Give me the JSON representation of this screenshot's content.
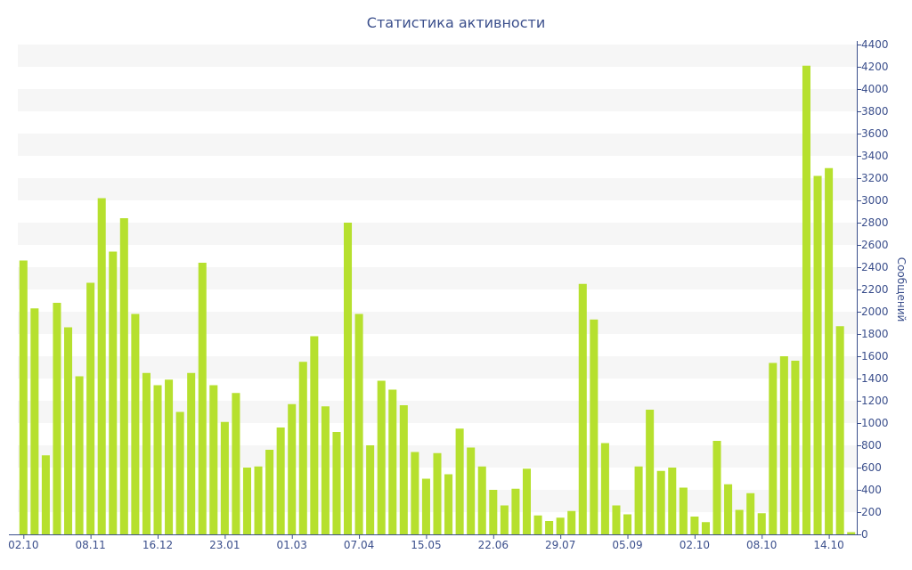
{
  "chart_data": {
    "type": "bar",
    "title": "Статистика активности",
    "xlabel": "",
    "ylabel": "Сообщений",
    "ylim": [
      0,
      4400
    ],
    "y_ticks": [
      0,
      200,
      400,
      600,
      800,
      1000,
      1200,
      1400,
      1600,
      1800,
      2000,
      2200,
      2400,
      2600,
      2800,
      3000,
      3200,
      3400,
      3600,
      3800,
      4000,
      4200,
      4400
    ],
    "grid": "alternating horizontal bands",
    "y_axis_position": "right",
    "x_tick_labels": [
      {
        "index": 0,
        "label": "02.10"
      },
      {
        "index": 6,
        "label": "08.11"
      },
      {
        "index": 12,
        "label": "16.12"
      },
      {
        "index": 18,
        "label": "23.01"
      },
      {
        "index": 24,
        "label": "01.03"
      },
      {
        "index": 30,
        "label": "07.04"
      },
      {
        "index": 36,
        "label": "15.05"
      },
      {
        "index": 42,
        "label": "22.06"
      },
      {
        "index": 48,
        "label": "29.07"
      },
      {
        "index": 54,
        "label": "05.09"
      },
      {
        "index": 60,
        "label": "02.10"
      },
      {
        "index": 66,
        "label": "08.10"
      },
      {
        "index": 72,
        "label": "14.10"
      }
    ],
    "values": [
      2460,
      2030,
      710,
      2080,
      1860,
      1420,
      2260,
      3020,
      2540,
      2840,
      1980,
      1450,
      1340,
      1390,
      1100,
      1450,
      2440,
      1340,
      1010,
      1270,
      600,
      610,
      760,
      960,
      1170,
      1550,
      1780,
      1150,
      920,
      2800,
      1980,
      800,
      1380,
      1300,
      1160,
      740,
      500,
      730,
      540,
      950,
      780,
      610,
      400,
      260,
      410,
      590,
      170,
      120,
      150,
      210,
      2250,
      1930,
      820,
      260,
      180,
      610,
      1120,
      570,
      600,
      420,
      160,
      110,
      840,
      450,
      220,
      370,
      190,
      1540,
      1600,
      1560,
      4210,
      3220,
      3290,
      1870,
      20
    ],
    "colors": {
      "bar": "#b6e02e",
      "band": "#f6f6f6",
      "axis": "#3b4f8c"
    }
  }
}
